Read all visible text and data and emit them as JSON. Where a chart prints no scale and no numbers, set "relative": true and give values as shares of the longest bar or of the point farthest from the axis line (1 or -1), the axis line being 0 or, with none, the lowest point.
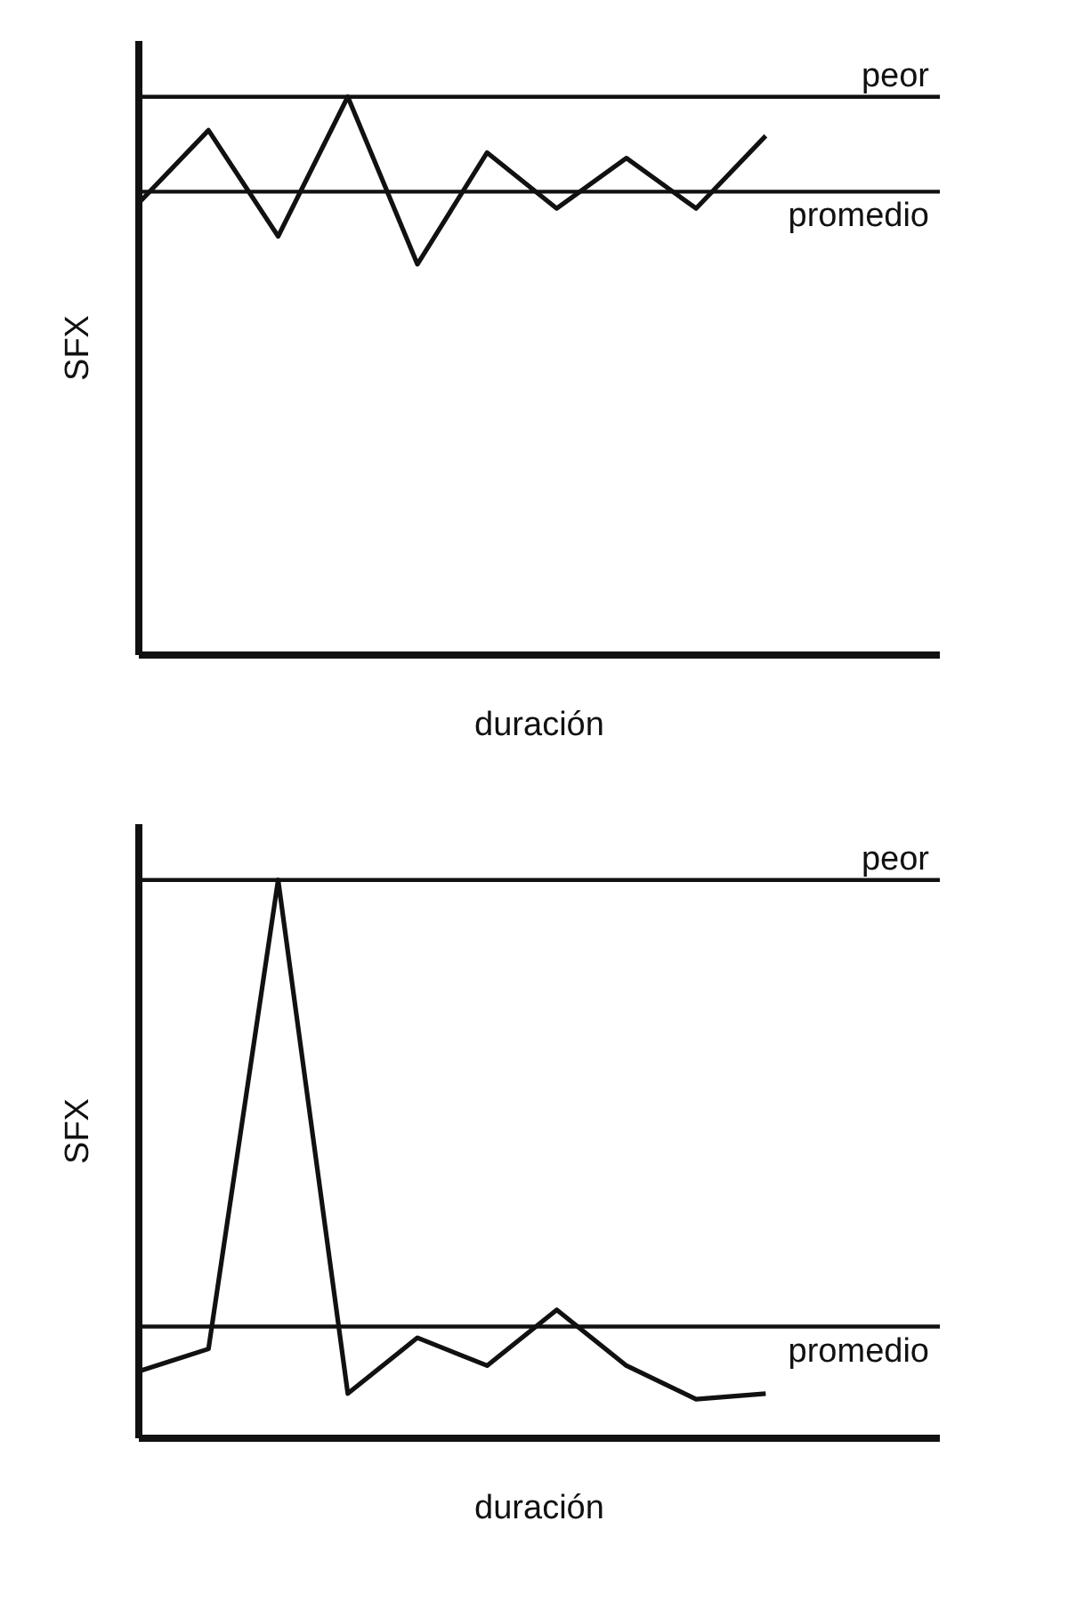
{
  "chart_data": [
    {
      "type": "line",
      "xlabel": "duración",
      "ylabel": "SFX",
      "relative": true,
      "categories": [
        null,
        null,
        null,
        null,
        null,
        null,
        null,
        null,
        null,
        null
      ],
      "series": [
        {
          "color": "#111111",
          "values": [
            0.81,
            0.94,
            0.75,
            1,
            0.7,
            0.9,
            0.8,
            0.89,
            0.8,
            0.93
          ]
        }
      ],
      "ref_lines": [
        {
          "axis": "y",
          "value": 1,
          "label": "peor",
          "color": "#111111"
        },
        {
          "axis": "y",
          "value": 0.83,
          "label": "promedio",
          "color": "#111111"
        }
      ],
      "grid": false,
      "marker": "none",
      "line_style": "solid"
    },
    {
      "type": "line",
      "xlabel": "duración",
      "ylabel": "SFX",
      "relative": true,
      "categories": [
        null,
        null,
        null,
        null,
        null,
        null,
        null,
        null,
        null,
        null
      ],
      "series": [
        {
          "color": "#111111",
          "values": [
            0.12,
            0.16,
            1,
            0.08,
            0.18,
            0.13,
            0.23,
            0.13,
            0.07,
            0.08
          ]
        }
      ],
      "ref_lines": [
        {
          "axis": "y",
          "value": 1,
          "label": "peor",
          "color": "#111111"
        },
        {
          "axis": "y",
          "value": 0.2,
          "label": "promedio",
          "color": "#111111"
        }
      ],
      "grid": false,
      "marker": "none",
      "line_style": "solid"
    }
  ]
}
